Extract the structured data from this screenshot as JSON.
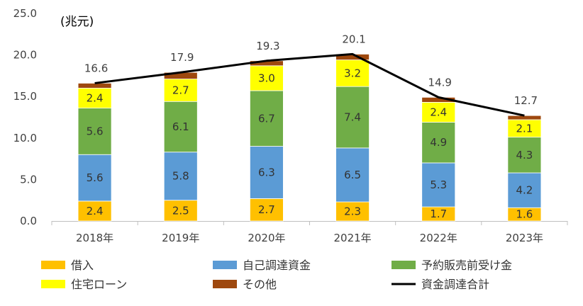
{
  "chart_data": {
    "type": "bar",
    "stacked": true,
    "unit_label": "(兆元)",
    "categories": [
      "2018年",
      "2019年",
      "2020年",
      "2021年",
      "2022年",
      "2023年"
    ],
    "ylim": [
      0,
      25
    ],
    "yticks": [
      "0.0",
      "5.0",
      "10.0",
      "15.0",
      "20.0",
      "25.0"
    ],
    "grid": false,
    "legend_position": "bottom",
    "series": [
      {
        "name": "借入",
        "type": "bar",
        "color": "#FFC000",
        "values": [
          2.4,
          2.5,
          2.7,
          2.3,
          1.7,
          1.6
        ],
        "labels": [
          "2.4",
          "2.5",
          "2.7",
          "2.3",
          "1.7",
          "1.6"
        ]
      },
      {
        "name": "自己調達資金",
        "type": "bar",
        "color": "#5B9BD5",
        "values": [
          5.6,
          5.8,
          6.3,
          6.5,
          5.3,
          4.2
        ],
        "labels": [
          "5.6",
          "5.8",
          "6.3",
          "6.5",
          "5.3",
          "4.2"
        ]
      },
      {
        "name": "予約販売前受け金",
        "type": "bar",
        "color": "#70AD47",
        "values": [
          5.6,
          6.1,
          6.7,
          7.4,
          4.9,
          4.3
        ],
        "labels": [
          "5.6",
          "6.1",
          "6.7",
          "7.4",
          "4.9",
          "4.3"
        ]
      },
      {
        "name": "住宅ローン",
        "type": "bar",
        "color": "#FFFF00",
        "values": [
          2.4,
          2.7,
          3.0,
          3.2,
          2.4,
          2.1
        ],
        "labels": [
          "2.4",
          "2.7",
          "3.0",
          "3.2",
          "2.4",
          "2.1"
        ]
      },
      {
        "name": "その他",
        "type": "bar",
        "color": "#9E480E",
        "values": [
          0.6,
          0.8,
          0.6,
          0.7,
          0.6,
          0.5
        ]
      },
      {
        "name": "資金調達合計",
        "type": "line",
        "color": "#000000",
        "values": [
          16.6,
          17.9,
          19.3,
          20.1,
          14.9,
          12.7
        ],
        "labels": [
          "16.6",
          "17.9",
          "19.3",
          "20.1",
          "14.9",
          "12.7"
        ]
      }
    ]
  }
}
